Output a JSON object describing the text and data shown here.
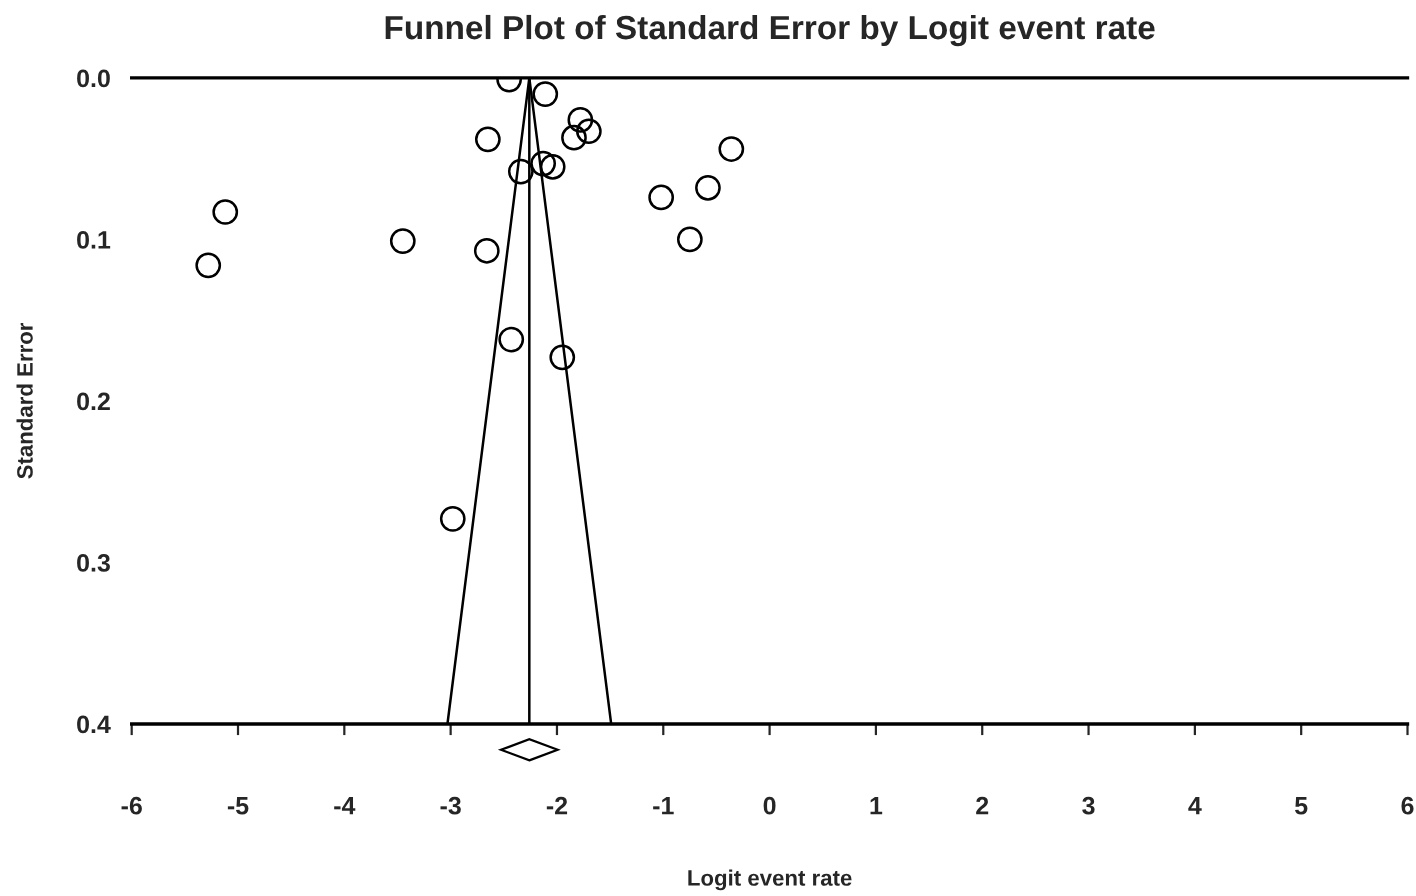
{
  "chart_data": {
    "type": "scatter",
    "title": "Funnel Plot of Standard Error by Logit event rate",
    "xlabel": "Logit event rate",
    "ylabel": "Standard Error",
    "series": [
      {
        "color": "#000000",
        "marker": "circle",
        "x": [
          -2.45,
          -2.11,
          -1.78,
          -1.7,
          -1.84,
          -2.65,
          -2.13,
          -2.04,
          -2.34,
          -5.12,
          -3.45,
          -5.28,
          -2.66,
          -2.43,
          -1.95,
          -2.98,
          -0.36,
          -0.58,
          -1.02,
          -0.75
        ],
        "values": [
          0.001,
          0.01,
          0.026,
          0.033,
          0.037,
          0.038,
          0.053,
          0.055,
          0.058,
          0.083,
          0.101,
          0.116,
          0.107,
          0.162,
          0.173,
          0.273,
          0.044,
          0.068,
          0.074,
          0.1
        ]
      },
      {
        "type": "line",
        "color": "#000000",
        "line_style": "solid",
        "x": [
          -2.26,
          -3.03
        ],
        "values": [
          0.0,
          0.4
        ]
      },
      {
        "type": "line",
        "color": "#000000",
        "line_style": "solid",
        "x": [
          -2.26,
          -1.49
        ],
        "values": [
          0.0,
          0.4
        ]
      }
    ],
    "ref_lines": [
      {
        "axis": "x",
        "value": -2.26,
        "color": "#000000"
      }
    ],
    "xlim": [
      -6,
      6
    ],
    "ylim": [
      0.4,
      0.0
    ],
    "xticks": [
      -6,
      -5,
      -4,
      -3,
      -2,
      -1,
      0,
      1,
      2,
      3,
      4,
      5,
      6
    ],
    "yticks": [
      {
        "value": 0.0,
        "label": "0.0"
      },
      0.1,
      0.2,
      0.3,
      0.4
    ],
    "grid": false,
    "legend": false
  }
}
